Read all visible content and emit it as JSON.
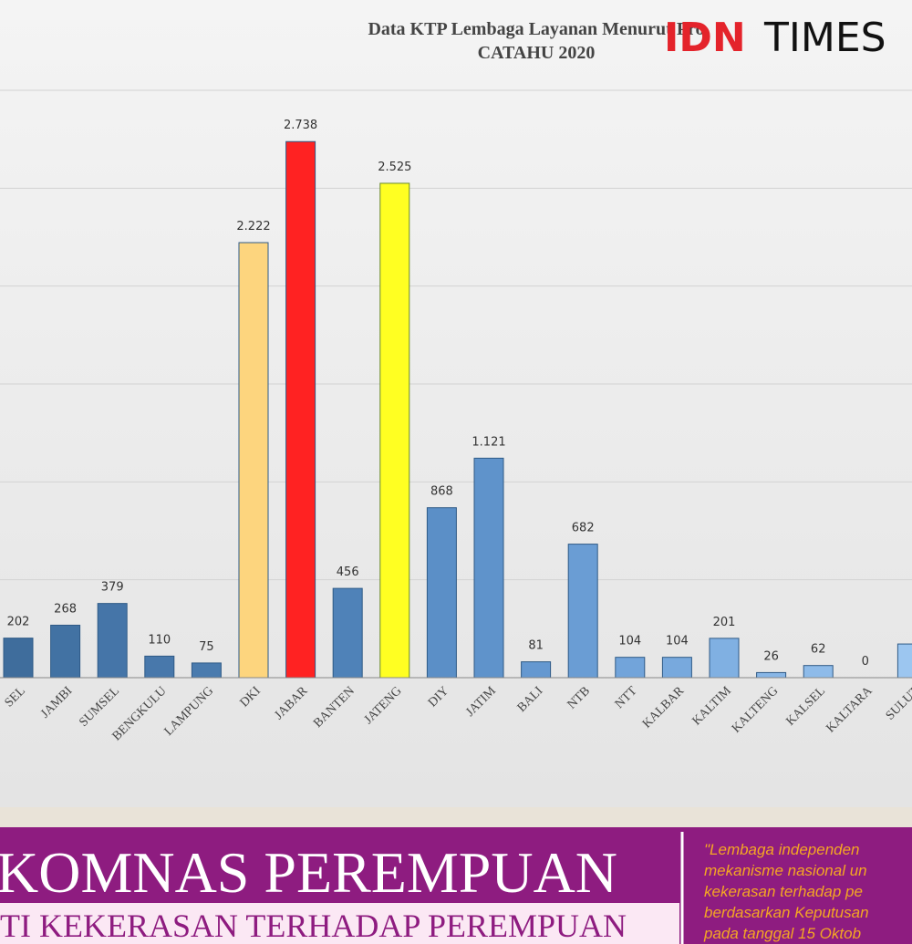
{
  "chart_data": {
    "type": "bar",
    "title": "Data KTP Lembaga Layanan Menurut Pro",
    "subtitle": "CATAHU 2020",
    "categories": [
      "SEL",
      "JAMBI",
      "SUMSEL",
      "BENGKULU",
      "LAMPUNG",
      "DKI",
      "JABAR",
      "BANTEN",
      "JATENG",
      "DIY",
      "JATIM",
      "BALI",
      "NTB",
      "NTT",
      "KALBAR",
      "KALTIM",
      "KALTENG",
      "KALSEL",
      "KALTARA",
      "SULUT"
    ],
    "values": [
      202,
      268,
      379,
      110,
      75,
      2222,
      2738,
      456,
      2525,
      868,
      1121,
      81,
      682,
      104,
      104,
      201,
      26,
      62,
      0,
      172
    ],
    "value_labels": [
      "202",
      "268",
      "379",
      "110",
      "75",
      "2.222",
      "2.738",
      "456",
      "2.525",
      "868",
      "1.121",
      "81",
      "682",
      "104",
      "104",
      "201",
      "26",
      "62",
      "0",
      null
    ],
    "colors": [
      "#3f6d9c",
      "#4272a3",
      "#4575a8",
      "#4878ab",
      "#4a7bae",
      "#fdd57e",
      "#ff2222",
      "#4f82b8",
      "#ffff22",
      "#5b8fc7",
      "#5f93cb",
      "#6598d0",
      "#6a9dd4",
      "#72a4da",
      "#78a9dd",
      "#80b0e2",
      "#88b6e6",
      "#8ebbe9",
      "#94c0ec",
      "#9cc6f0"
    ],
    "ylim": [
      0,
      3000
    ],
    "ygrid": [
      500,
      1000,
      1500,
      2000,
      2500,
      3000
    ],
    "grid": true
  },
  "logo": {
    "part1": "IDN",
    "part2": "TIMES"
  },
  "banner": {
    "title": "KOMNAS PEREMPUAN",
    "subtitle": "TI KEKERASAN TERHADAP PEREMPUAN",
    "quote_lines": [
      "\"Lembaga independen",
      "mekanisme nasional un",
      "kekerasan terhadap pe",
      "berdasarkan Keputusan",
      "pada tanggal 15 Oktob"
    ]
  }
}
